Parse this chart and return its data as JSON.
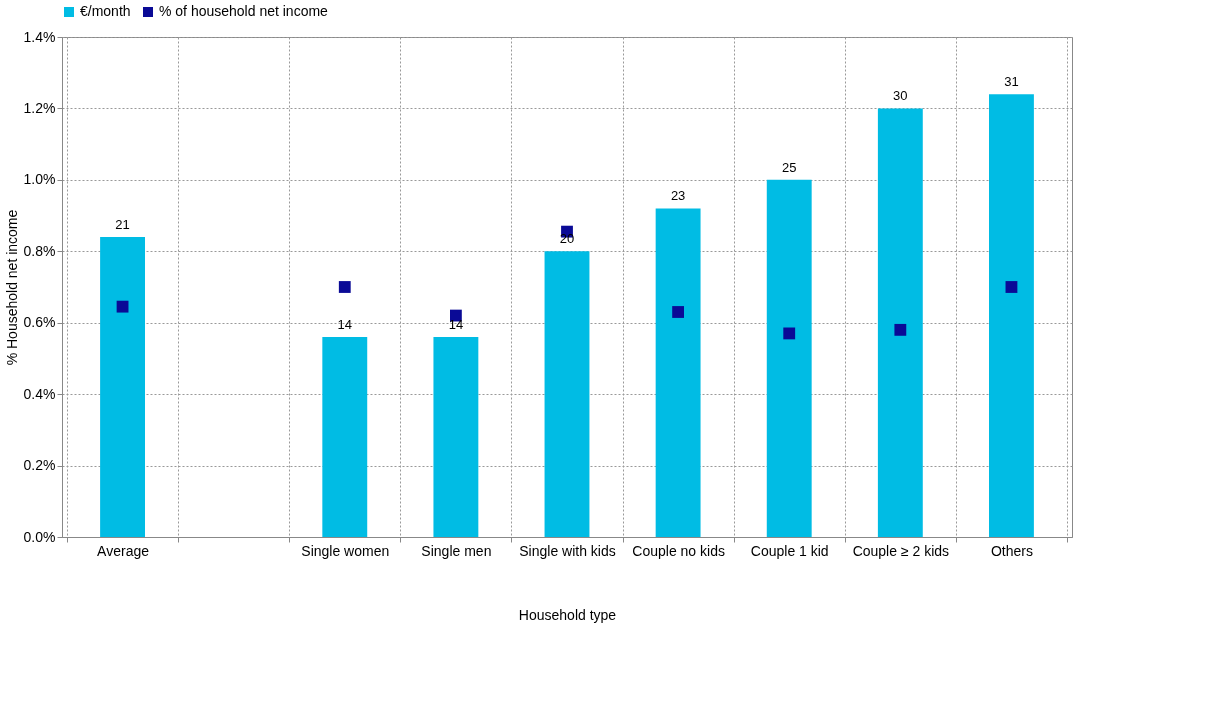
{
  "chart_data": {
    "type": "bar",
    "categories": [
      "Average",
      null,
      "Single women",
      "Single men",
      "Single with kids",
      "Couple no kids",
      "Couple 1 kid",
      "Couple ≥ 2 kids",
      "Others"
    ],
    "series": [
      {
        "name": "€/month",
        "color": "#00bce4",
        "axis": "y2",
        "values": [
          21,
          null,
          14,
          14,
          20,
          23,
          25,
          30,
          31
        ],
        "value_labels": [
          "21",
          null,
          "14",
          "14",
          "20",
          "23",
          "25",
          "30",
          "31"
        ]
      },
      {
        "name": "% of household net income",
        "type": "scatter",
        "color": "#0a0a96",
        "marker": "square",
        "values": [
          0.645,
          null,
          0.7,
          0.62,
          0.855,
          0.63,
          0.57,
          0.58,
          0.7
        ]
      }
    ],
    "xlabel": "Household type",
    "ylabel": "% Household net income",
    "ylim": [
      0,
      1.4
    ],
    "yticks": [
      {
        "value": 0,
        "label": "0.0%"
      },
      {
        "value": 0.2,
        "label": "0.2%"
      },
      {
        "value": 0.4,
        "label": "0.4%"
      },
      {
        "value": 0.6,
        "label": "0.6%"
      },
      {
        "value": 0.8,
        "label": "0.8%"
      },
      {
        "value": 1.0,
        "label": "1.0%"
      },
      {
        "value": 1.2,
        "label": "1.2%"
      },
      {
        "value": 1.4,
        "label": "1.4%"
      }
    ],
    "y2lim": [
      0,
      35
    ],
    "grid": true,
    "legend": "top"
  }
}
